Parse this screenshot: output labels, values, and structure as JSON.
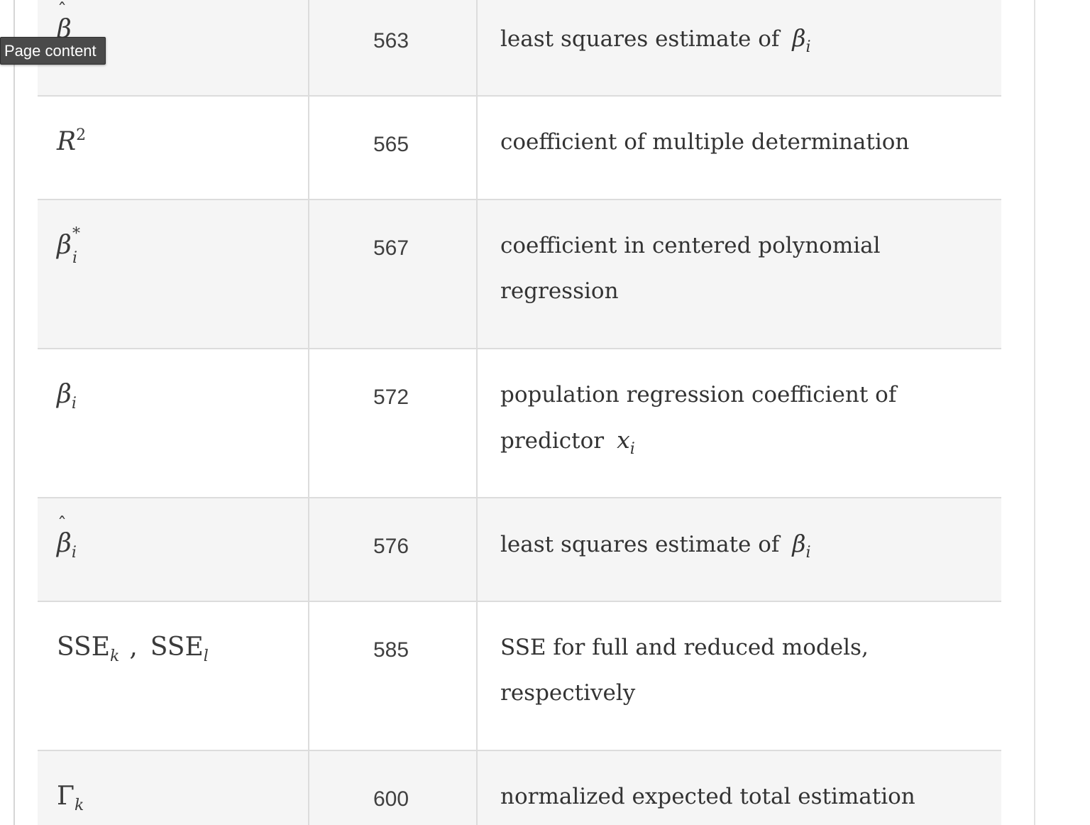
{
  "tooltip": {
    "text": "Page content"
  },
  "rows": [
    {
      "symbol_base": "β",
      "symbol_sub": "",
      "page": "563",
      "desc_text": "least squares estimate of",
      "desc_var": "β",
      "desc_var_sub": "i"
    },
    {
      "symbol_base": "R",
      "symbol_sup": "2",
      "page": "565",
      "desc_text": "coefficient of multiple determination",
      "desc_var": "",
      "desc_var_sub": ""
    },
    {
      "symbol_base": "β",
      "symbol_sup": "*",
      "symbol_sub": "i",
      "page": "567",
      "desc_text": "coefficient in centered polynomial regression",
      "desc_var": "",
      "desc_var_sub": ""
    },
    {
      "symbol_base": "β",
      "symbol_sub": "i",
      "page": "572",
      "desc_text": "population regression coefficient of predictor",
      "desc_var": "x",
      "desc_var_sub": "i"
    },
    {
      "symbol_base": "β",
      "symbol_sub": "i",
      "page": "576",
      "desc_text": "least squares estimate of",
      "desc_var": "β",
      "desc_var_sub": "i"
    },
    {
      "symbol_a": "SSE",
      "symbol_a_sub": "k",
      "symbol_sep": ",",
      "symbol_b": "SSE",
      "symbol_b_sub": "l",
      "page": "585",
      "desc_text": "SSE for full and reduced models, respectively",
      "desc_var": "",
      "desc_var_sub": ""
    },
    {
      "symbol_base": "Γ",
      "symbol_sub": "k",
      "page": "600",
      "desc_text": "normalized expected total estimation error",
      "desc_var": "",
      "desc_var_sub": ""
    }
  ]
}
